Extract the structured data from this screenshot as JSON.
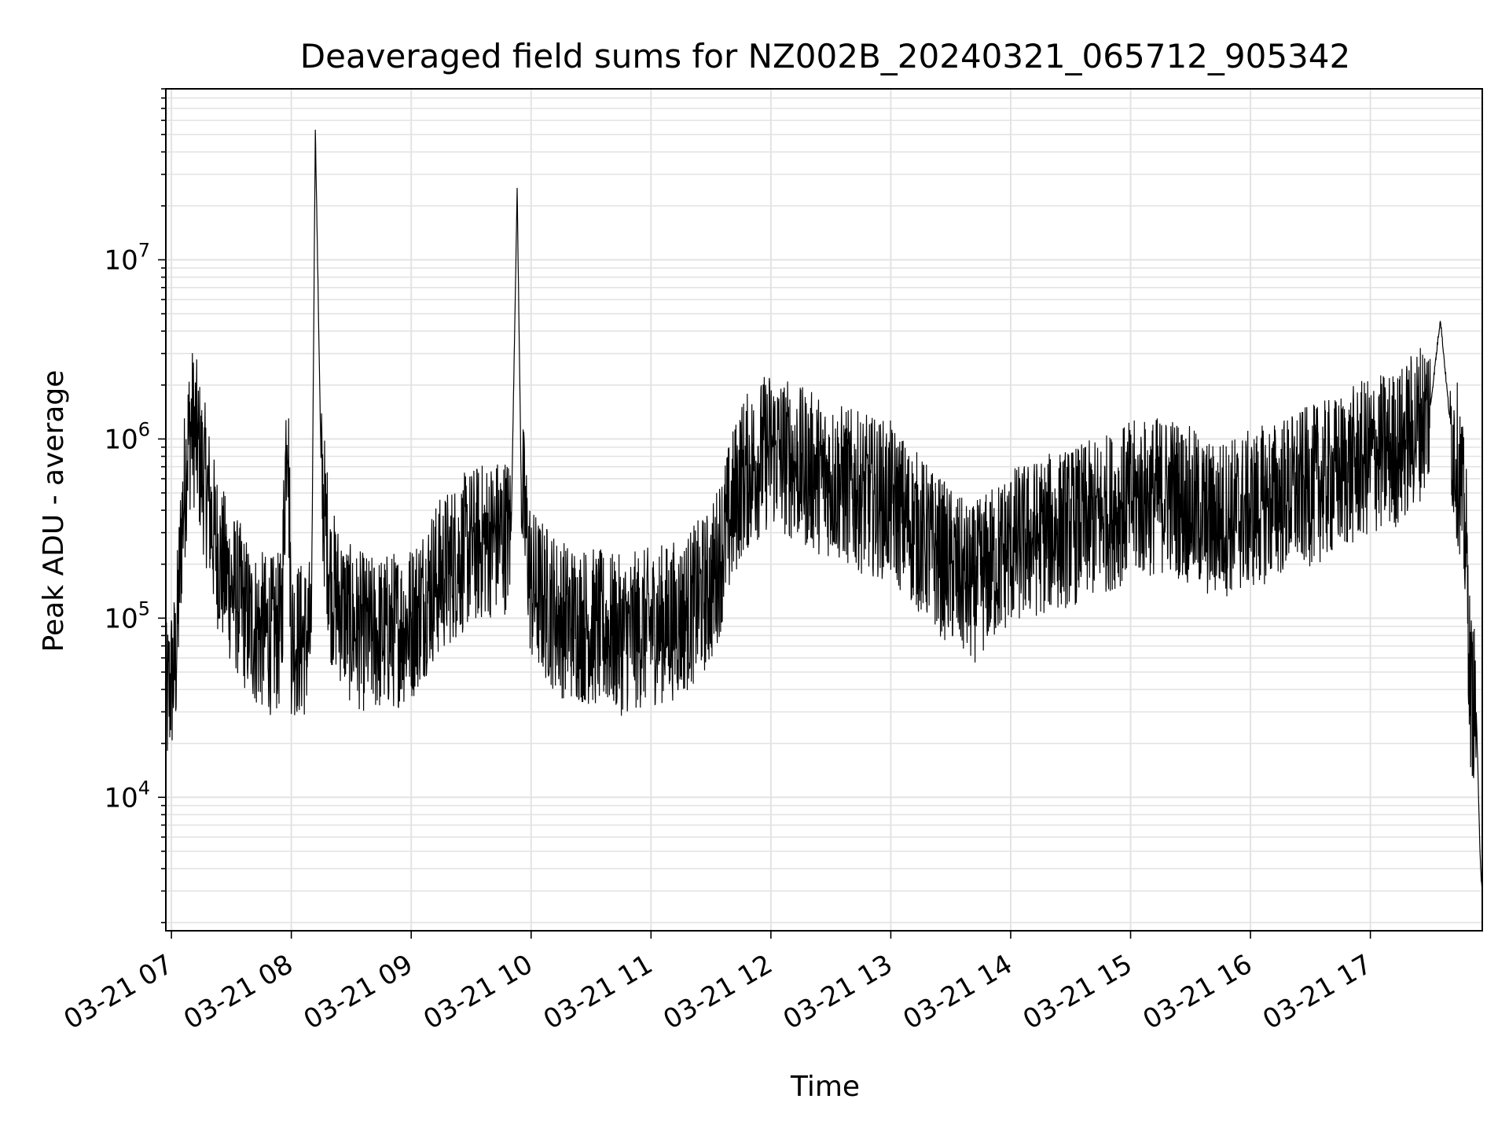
{
  "chart_data": {
    "type": "line",
    "title": "Deaveraged field sums for NZ002B_20240321_065712_905342",
    "xlabel": "Time",
    "ylabel": "Peak ADU - average",
    "yscale": "log",
    "ylim": [
      1800,
      90000000
    ],
    "xlim": [
      "2024-03-21 06:57:12",
      "2024-03-21 17:56:00"
    ],
    "grid": true,
    "line_color": "#000000",
    "grid_color": "#e3e3e3",
    "x_ticks": [
      {
        "t": "2024-03-21 07:00",
        "label": "03-21 07"
      },
      {
        "t": "2024-03-21 08:00",
        "label": "03-21 08"
      },
      {
        "t": "2024-03-21 09:00",
        "label": "03-21 09"
      },
      {
        "t": "2024-03-21 10:00",
        "label": "03-21 10"
      },
      {
        "t": "2024-03-21 11:00",
        "label": "03-21 11"
      },
      {
        "t": "2024-03-21 12:00",
        "label": "03-21 12"
      },
      {
        "t": "2024-03-21 13:00",
        "label": "03-21 13"
      },
      {
        "t": "2024-03-21 14:00",
        "label": "03-21 14"
      },
      {
        "t": "2024-03-21 15:00",
        "label": "03-21 15"
      },
      {
        "t": "2024-03-21 16:00",
        "label": "03-21 16"
      },
      {
        "t": "2024-03-21 17:00",
        "label": "03-21 17"
      }
    ],
    "y_ticks": [
      {
        "value": 10000,
        "base": "10",
        "exp": "4"
      },
      {
        "value": 100000,
        "base": "10",
        "exp": "5"
      },
      {
        "value": 1000000,
        "base": "10",
        "exp": "6"
      },
      {
        "value": 10000000,
        "base": "10",
        "exp": "7"
      }
    ],
    "series": [
      {
        "x": [
          "2024-03-21 06:57",
          "2024-03-21 07:00",
          "2024-03-21 07:02",
          "2024-03-21 07:03",
          "2024-03-21 07:05",
          "2024-03-21 07:08",
          "2024-03-21 07:10",
          "2024-03-21 07:12",
          "2024-03-21 07:15",
          "2024-03-21 07:18",
          "2024-03-21 07:21",
          "2024-03-21 07:25",
          "2024-03-21 07:30",
          "2024-03-21 07:35",
          "2024-03-21 07:40",
          "2024-03-21 07:45",
          "2024-03-21 07:50",
          "2024-03-21 07:55",
          "2024-03-21 07:58",
          "2024-03-21 08:00",
          "2024-03-21 08:05",
          "2024-03-21 08:10",
          "2024-03-21 08:12",
          "2024-03-21 08:15",
          "2024-03-21 08:20",
          "2024-03-21 08:30",
          "2024-03-21 08:40",
          "2024-03-21 08:50",
          "2024-03-21 09:00",
          "2024-03-21 09:10",
          "2024-03-21 09:20",
          "2024-03-21 09:30",
          "2024-03-21 09:40",
          "2024-03-21 09:50",
          "2024-03-21 09:53",
          "2024-03-21 09:55",
          "2024-03-21 10:00",
          "2024-03-21 10:15",
          "2024-03-21 10:30",
          "2024-03-21 10:45",
          "2024-03-21 11:00",
          "2024-03-21 11:15",
          "2024-03-21 11:30",
          "2024-03-21 11:45",
          "2024-03-21 12:00",
          "2024-03-21 12:15",
          "2024-03-21 12:30",
          "2024-03-21 12:45",
          "2024-03-21 13:00",
          "2024-03-21 13:20",
          "2024-03-21 13:40",
          "2024-03-21 14:00",
          "2024-03-21 14:20",
          "2024-03-21 14:40",
          "2024-03-21 15:00",
          "2024-03-21 15:20",
          "2024-03-21 15:40",
          "2024-03-21 16:00",
          "2024-03-21 16:20",
          "2024-03-21 16:40",
          "2024-03-21 17:00",
          "2024-03-21 17:15",
          "2024-03-21 17:30",
          "2024-03-21 17:35",
          "2024-03-21 17:40",
          "2024-03-21 17:45",
          "2024-03-21 17:48",
          "2024-03-21 17:50",
          "2024-03-21 17:53",
          "2024-03-21 17:55",
          "2024-03-21 17:56"
        ],
        "y": [
          32000,
          45000,
          55000,
          90000,
          300000,
          900000,
          1200000,
          1100000,
          700000,
          500000,
          300000,
          200000,
          150000,
          120000,
          90000,
          85000,
          80000,
          85000,
          1800000,
          80000,
          75000,
          80000,
          55000000,
          600000,
          150000,
          90000,
          80000,
          85000,
          95000,
          150000,
          200000,
          250000,
          280000,
          300000,
          25000000,
          600000,
          150000,
          100000,
          90000,
          80000,
          90000,
          100000,
          150000,
          600000,
          900000,
          700000,
          600000,
          500000,
          450000,
          250000,
          150000,
          250000,
          300000,
          350000,
          450000,
          500000,
          350000,
          400000,
          500000,
          600000,
          800000,
          900000,
          1500000,
          4700000,
          1200000,
          600000,
          250000,
          40000,
          30000,
          4500,
          2800
        ]
      }
    ]
  }
}
